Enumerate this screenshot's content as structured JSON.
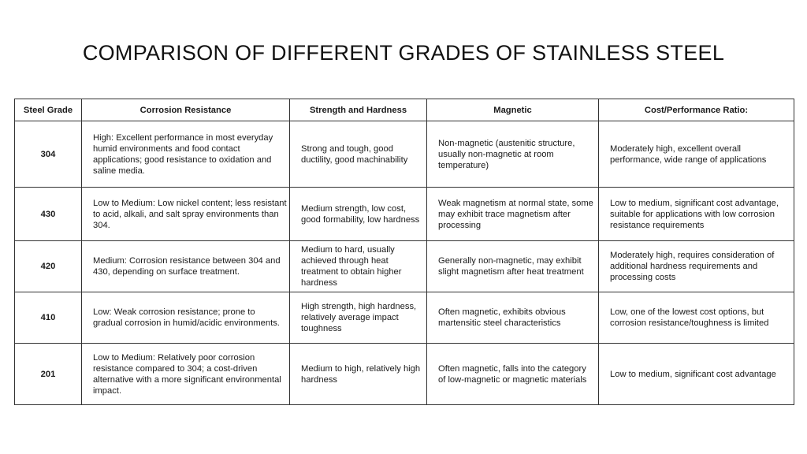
{
  "title": "COMPARISON OF DIFFERENT GRADES OF STAINLESS STEEL",
  "table": {
    "headers": [
      "Steel Grade",
      "Corrosion Resistance",
      "Strength and Hardness",
      "Magnetic",
      "Cost/Performance Ratio:"
    ],
    "rows": [
      {
        "grade": "304",
        "corrosion": "High: Excellent performance in most everyday humid environments and food contact applications; good resistance to oxidation and saline media.",
        "strength": "Strong and tough, good ductility, good machinability",
        "magnetic": "Non-magnetic (austenitic structure, usually non-magnetic at room temperature)",
        "cost": "Moderately high, excellent overall performance, wide range of applications"
      },
      {
        "grade": "430",
        "corrosion": "Low to Medium: Low nickel content; less resistant to acid, alkali, and salt spray environments than 304.",
        "strength": "Medium strength, low cost, good formability, low hardness",
        "magnetic": "Weak magnetism at normal state, some may exhibit trace magnetism after processing",
        "cost": "Low to medium, significant cost advantage, suitable for applications with low corrosion resistance requirements"
      },
      {
        "grade": "420",
        "corrosion": "Medium: Corrosion resistance between 304 and 430, depending on surface treatment.",
        "strength": "Medium to hard, usually achieved through heat treatment to obtain higher hardness",
        "magnetic": "Generally non-magnetic, may exhibit slight magnetism after heat treatment",
        "cost": "Moderately high, requires consideration of additional hardness requirements and processing costs"
      },
      {
        "grade": "410",
        "corrosion": "Low: Weak corrosion resistance; prone to gradual corrosion in humid/acidic environments.",
        "strength": "High strength, high hardness, relatively average impact toughness",
        "magnetic": "Often magnetic, exhibits obvious martensitic steel characteristics",
        "cost": "Low, one of the lowest cost options, but corrosion resistance/toughness is limited"
      },
      {
        "grade": "201",
        "corrosion": "Low to Medium: Relatively poor corrosion resistance compared to 304; a cost-driven alternative with a more significant environmental impact.",
        "strength": "Medium to high, relatively high hardness",
        "magnetic": "Often magnetic, falls into the category of low-magnetic or magnetic materials",
        "cost": "Low to medium, significant cost advantage"
      }
    ]
  }
}
